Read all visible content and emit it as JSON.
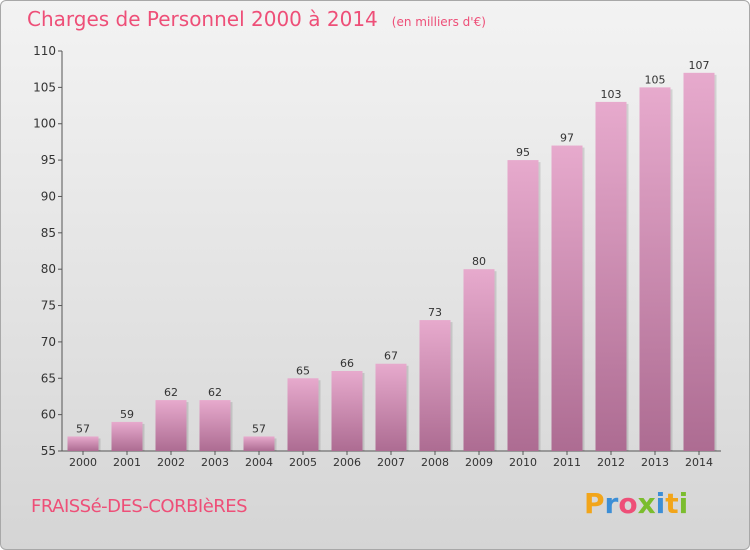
{
  "header": {
    "title": "Charges de Personnel 2000 à 2014",
    "subtitle": "(en milliers d'€)"
  },
  "footer": {
    "commune": "FRAISSé-DES-CORBIèRES",
    "logo_text": "Proxiti"
  },
  "colors": {
    "title": "#ee4f78",
    "bar_top": "#e7aacd",
    "bar_bottom": "#ad6c92",
    "logo_letters": [
      "#f2a51a",
      "#3c8ed6",
      "#ee4f78",
      "#7bbd2e",
      "#3c8ed6",
      "#f2a51a",
      "#7bbd2e"
    ]
  },
  "chart_data": {
    "type": "bar",
    "title": "Charges de Personnel 2000 à 2014",
    "subtitle": "(en milliers d'€)",
    "categories": [
      "2000",
      "2001",
      "2002",
      "2003",
      "2004",
      "2005",
      "2006",
      "2007",
      "2008",
      "2009",
      "2010",
      "2011",
      "2012",
      "2013",
      "2014"
    ],
    "values": [
      57,
      59,
      62,
      62,
      57,
      65,
      66,
      67,
      73,
      80,
      95,
      97,
      103,
      105,
      107
    ],
    "ylim": [
      55,
      110
    ],
    "yticks": [
      55,
      60,
      65,
      70,
      75,
      80,
      85,
      90,
      95,
      100,
      105,
      110
    ],
    "grid": false,
    "data_labels": true
  }
}
